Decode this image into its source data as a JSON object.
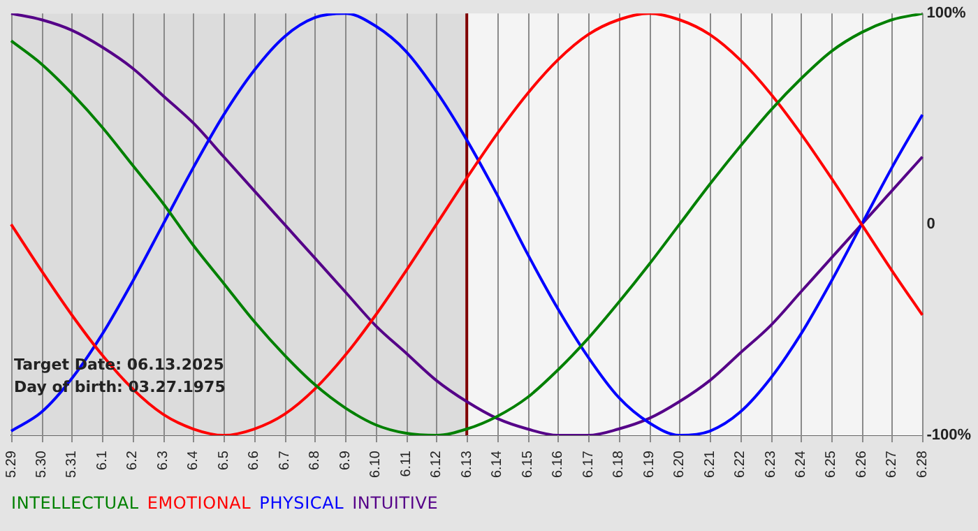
{
  "chart_data": {
    "type": "line",
    "categories": [
      "5.29",
      "5.30",
      "5.31",
      "6.1",
      "6.2",
      "6.3",
      "6.4",
      "6.5",
      "6.6",
      "6.7",
      "6.8",
      "6.9",
      "6.10",
      "6.11",
      "6.12",
      "6.13",
      "6.14",
      "6.15",
      "6.16",
      "6.17",
      "6.18",
      "6.19",
      "6.20",
      "6.21",
      "6.22",
      "6.23",
      "6.24",
      "6.25",
      "6.26",
      "6.27",
      "6.28"
    ],
    "series": [
      {
        "name": "INTELLECTUAL",
        "color": "#008000",
        "values": [
          87,
          76,
          62,
          46,
          28,
          10,
          -10,
          -28,
          -46,
          -62,
          -76,
          -87,
          -95,
          -99,
          -100,
          -97,
          -91,
          -82,
          -69,
          -54,
          -37,
          -19,
          0,
          19,
          37,
          54,
          69,
          82,
          91,
          97,
          100
        ]
      },
      {
        "name": "EMOTIONAL",
        "color": "#ff0000",
        "values": [
          0,
          -22,
          -43,
          -62,
          -78,
          -90,
          -97,
          -100,
          -97,
          -90,
          -78,
          -62,
          -43,
          -22,
          0,
          22,
          43,
          62,
          78,
          90,
          97,
          100,
          97,
          90,
          78,
          62,
          43,
          22,
          0,
          -22,
          -43
        ]
      },
      {
        "name": "PHYSICAL",
        "color": "#0000ff",
        "values": [
          -98,
          -89,
          -73,
          -52,
          -27,
          0,
          27,
          52,
          73,
          89,
          98,
          100,
          94,
          82,
          63,
          40,
          14,
          -14,
          -40,
          -63,
          -82,
          -94,
          -100,
          -98,
          -89,
          -73,
          -52,
          -27,
          0,
          27,
          52
        ]
      },
      {
        "name": "INTUITIVE",
        "color": "#550088",
        "values": [
          100,
          97,
          92,
          84,
          74,
          61,
          48,
          32,
          16,
          0,
          -16,
          -32,
          -48,
          -61,
          -74,
          -84,
          -92,
          -97,
          -100,
          -100,
          -97,
          -92,
          -84,
          -74,
          -61,
          -48,
          -32,
          -16,
          0,
          16,
          32
        ]
      }
    ],
    "ylim": [
      -100,
      100
    ],
    "yticks": [
      {
        "value": 100,
        "label": "100%"
      },
      0,
      {
        "value": -100,
        "label": "-100%"
      }
    ],
    "ref_lines": [
      {
        "axis": "x",
        "value": "6.13",
        "color": "#800000"
      }
    ],
    "bands": [
      {
        "axis": "x",
        "from": "5.29",
        "to": "6.13",
        "color": "#dcdcdc"
      }
    ],
    "annotations": [
      "Target Date: 06.13.2025",
      "Day of birth: 03.27.1975"
    ],
    "grid": "x",
    "legend": "bottom",
    "marker": "none",
    "line_style": "solid"
  }
}
